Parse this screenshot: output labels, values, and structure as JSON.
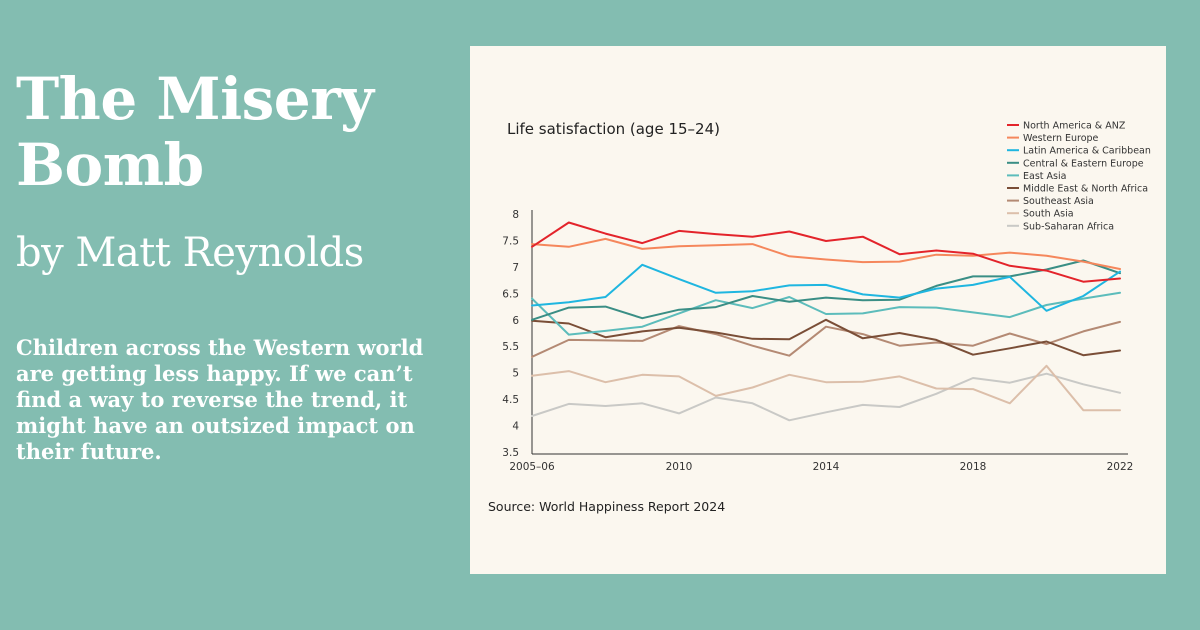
{
  "article": {
    "title": "The Misery Bomb",
    "byline": "by Matt Reynolds",
    "standfirst": "Children across the Western world are getting less happy. If we can’t find a way to reverse the trend, it might have an outsized impact on their future."
  },
  "colors": {
    "background": "#83bdb1",
    "card": "#fbf7ef",
    "text": "#ffffff"
  },
  "chart_data": {
    "type": "line",
    "title": "Life satisfaction (age 15–24)",
    "source": "Source: World Happiness Report 2024",
    "xlabel": "",
    "ylabel": "",
    "x": [
      2006,
      2007,
      2008,
      2009,
      2010,
      2011,
      2012,
      2013,
      2014,
      2015,
      2016,
      2017,
      2018,
      2019,
      2020,
      2021,
      2022
    ],
    "x_ticks": [
      {
        "value": 2006,
        "label": "2005–06"
      },
      {
        "value": 2010,
        "label": "2010"
      },
      {
        "value": 2014,
        "label": "2014"
      },
      {
        "value": 2018,
        "label": "2018"
      },
      {
        "value": 2022,
        "label": "2022"
      }
    ],
    "ylim": [
      3.5,
      8
    ],
    "y_ticks": [
      {
        "value": 3.5,
        "label": "3.5"
      },
      {
        "value": 4,
        "label": "4"
      },
      {
        "value": 4.5,
        "label": "4.5"
      },
      {
        "value": 5,
        "label": "5"
      },
      {
        "value": 5.5,
        "label": "5.5"
      },
      {
        "value": 6,
        "label": "6"
      },
      {
        "value": 6.5,
        "label": "6.5"
      },
      {
        "value": 7,
        "label": "7"
      },
      {
        "value": 7.5,
        "label": "7.5"
      },
      {
        "value": 8,
        "label": "8"
      }
    ],
    "grid": false,
    "legend_position": "top-right",
    "series": [
      {
        "name": "North America & ANZ",
        "color": "#e3242b",
        "values": [
          7.38,
          7.84,
          7.63,
          7.45,
          7.68,
          7.62,
          7.57,
          7.67,
          7.49,
          7.57,
          7.24,
          7.31,
          7.25,
          7.02,
          6.93,
          6.72,
          6.78
        ]
      },
      {
        "name": "Western Europe",
        "color": "#f5875c",
        "values": [
          7.43,
          7.38,
          7.53,
          7.34,
          7.39,
          7.41,
          7.43,
          7.2,
          7.14,
          7.09,
          7.1,
          7.23,
          7.21,
          7.27,
          7.21,
          7.1,
          6.96
        ]
      },
      {
        "name": "Latin America & Caribbean",
        "color": "#1fb6e0",
        "values": [
          6.27,
          6.33,
          6.43,
          7.04,
          6.77,
          6.51,
          6.54,
          6.65,
          6.66,
          6.48,
          6.42,
          6.59,
          6.66,
          6.81,
          6.17,
          6.45,
          6.91
        ]
      },
      {
        "name": "Central & Eastern Europe",
        "color": "#3a8e85",
        "values": [
          6.0,
          6.23,
          6.25,
          6.03,
          6.19,
          6.24,
          6.45,
          6.34,
          6.42,
          6.37,
          6.38,
          6.64,
          6.82,
          6.82,
          6.95,
          7.12,
          6.88
        ]
      },
      {
        "name": "East Asia",
        "color": "#5cbcbb",
        "values": [
          6.4,
          5.72,
          5.79,
          5.87,
          6.12,
          6.37,
          6.22,
          6.43,
          6.11,
          6.12,
          6.24,
          6.23,
          6.14,
          6.05,
          6.28,
          6.4,
          6.51
        ]
      },
      {
        "name": "Middle East & North Africa",
        "color": "#7a4e37",
        "values": [
          5.98,
          5.93,
          5.67,
          5.78,
          5.85,
          5.76,
          5.64,
          5.63,
          6.0,
          5.65,
          5.75,
          5.62,
          5.34,
          5.46,
          5.59,
          5.33,
          5.42
        ]
      },
      {
        "name": "Southeast Asia",
        "color": "#b48a74",
        "values": [
          5.3,
          5.62,
          5.61,
          5.6,
          5.88,
          5.73,
          5.51,
          5.32,
          5.87,
          5.73,
          5.51,
          5.57,
          5.51,
          5.74,
          5.54,
          5.78,
          5.96
        ]
      },
      {
        "name": "South Asia",
        "color": "#dcbfaa",
        "values": [
          4.94,
          5.03,
          4.82,
          4.96,
          4.93,
          4.56,
          4.72,
          4.96,
          4.82,
          4.83,
          4.93,
          4.7,
          4.69,
          4.42,
          5.13,
          4.29,
          4.29
        ]
      },
      {
        "name": "Sub-Saharan Africa",
        "color": "#c9c9c6",
        "values": [
          4.18,
          4.41,
          4.37,
          4.42,
          4.23,
          4.53,
          4.42,
          4.1,
          4.25,
          4.39,
          4.35,
          4.6,
          4.9,
          4.81,
          4.98,
          4.78,
          4.62
        ]
      }
    ]
  }
}
